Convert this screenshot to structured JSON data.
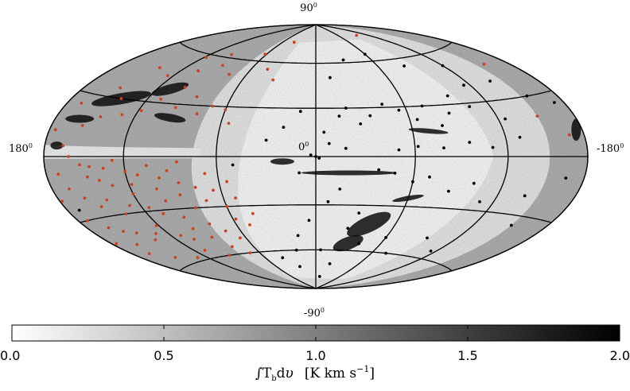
{
  "chart_data": {
    "type": "heatmap",
    "projection": "Aitoff/Hammer all-sky map in galactic coordinates",
    "colormap": "grayscale (white = low, black = high)",
    "grid": true,
    "graticule": {
      "longitude_lines_deg": [
        -180,
        -120,
        -60,
        0,
        60,
        120,
        180
      ],
      "latitude_lines_deg": [
        -60,
        -30,
        0,
        30,
        60
      ]
    },
    "map_labels": {
      "top": {
        "base": "90",
        "sup": "0"
      },
      "bottom": {
        "base": "-90",
        "sup": "0"
      },
      "left": {
        "base": "180",
        "sup": "0"
      },
      "right": {
        "base": "-180",
        "sup": "0"
      },
      "center": {
        "base": "0",
        "sup": "0"
      }
    },
    "colorbar": {
      "range": [
        0.0,
        2.0
      ],
      "ticks": [
        "0.0",
        "0.5",
        "1.0",
        "1.5",
        "2.0"
      ],
      "label": {
        "prefix": "∫T",
        "sub": "b",
        "mid": "d",
        "v": "υ",
        "units": "[K km s",
        "unit_sup": "−1",
        "close": "]"
      }
    },
    "series": [
      {
        "marker": "filled circle",
        "color": "#c8431f",
        "points_lb_deg": [
          [
            150,
            35
          ],
          [
            140,
            30
          ],
          [
            130,
            22
          ],
          [
            118,
            25
          ],
          [
            110,
            32
          ],
          [
            100,
            40
          ],
          [
            95,
            28
          ],
          [
            85,
            35
          ],
          [
            78,
            25
          ],
          [
            70,
            30
          ],
          [
            60,
            28
          ],
          [
            55,
            20
          ],
          [
            125,
            45
          ],
          [
            105,
            50
          ],
          [
            90,
            55
          ],
          [
            75,
            50
          ],
          [
            145,
            20
          ],
          [
            155,
            15
          ],
          [
            165,
            5
          ],
          [
            160,
            0
          ],
          [
            152,
            -4
          ],
          [
            148,
            -10
          ],
          [
            140,
            -12
          ],
          [
            135,
            -6
          ],
          [
            128,
            -2
          ],
          [
            120,
            -8
          ],
          [
            112,
            -10
          ],
          [
            105,
            -5
          ],
          [
            98,
            -12
          ],
          [
            92,
            -8
          ],
          [
            85,
            -3
          ],
          [
            170,
            -8
          ],
          [
            166,
            -15
          ],
          [
            158,
            -20
          ],
          [
            150,
            -25
          ],
          [
            142,
            -22
          ],
          [
            136,
            -30
          ],
          [
            128,
            -26
          ],
          [
            120,
            -20
          ],
          [
            115,
            -28
          ],
          [
            108,
            -32
          ],
          [
            100,
            -25
          ],
          [
            95,
            -35
          ],
          [
            88,
            -22
          ],
          [
            82,
            -30
          ],
          [
            76,
            -18
          ],
          [
            72,
            -26
          ],
          [
            65,
            -20
          ],
          [
            60,
            -30
          ],
          [
            55,
            -15
          ],
          [
            172,
            -30
          ],
          [
            162,
            -35
          ],
          [
            154,
            -38
          ],
          [
            145,
            -40
          ],
          [
            138,
            -45
          ],
          [
            130,
            -42
          ],
          [
            122,
            -38
          ],
          [
            112,
            -45
          ],
          [
            105,
            -48
          ],
          [
            96,
            -42
          ],
          [
            88,
            -48
          ],
          [
            80,
            -40
          ],
          [
            72,
            -45
          ],
          [
            65,
            -50
          ],
          [
            58,
            -38
          ],
          [
            50,
            -42
          ],
          [
            175,
            12
          ],
          [
            168,
            25
          ],
          [
            178,
            -20
          ],
          [
            176,
            -42
          ],
          [
            165,
            -50
          ],
          [
            150,
            -55
          ],
          [
            130,
            -58
          ],
          [
            110,
            -55
          ],
          [
            95,
            -60
          ],
          [
            80,
            -55
          ],
          [
            70,
            -60
          ],
          [
            142,
            48
          ],
          [
            118,
            58
          ],
          [
            98,
            62
          ],
          [
            62,
            65
          ],
          [
            40,
            75
          ],
          [
            -150,
            20
          ],
          [
            -168,
            10
          ],
          [
            -158,
            48
          ],
          [
            -100,
            78
          ],
          [
            45,
            55
          ],
          [
            35,
            48
          ],
          [
            160,
            -45
          ],
          [
            118,
            -15
          ],
          [
            102,
            -18
          ],
          [
            86,
            -15
          ],
          [
            68,
            -10
          ],
          [
            52,
            -25
          ],
          [
            44,
            -35
          ],
          [
            145,
            -5
          ],
          [
            132,
            -15
          ]
        ]
      },
      {
        "marker": "filled circle",
        "color": "#000000",
        "points_lb_deg": [
          [
            0,
            0
          ],
          [
            -2,
            -1
          ],
          [
            3,
            1
          ],
          [
            -5,
            15
          ],
          [
            -15,
            25
          ],
          [
            -20,
            30
          ],
          [
            -28,
            20
          ],
          [
            -35,
            25
          ],
          [
            -45,
            32
          ],
          [
            -55,
            28
          ],
          [
            -65,
            22
          ],
          [
            -72,
            30
          ],
          [
            -80,
            18
          ],
          [
            -88,
            25
          ],
          [
            -95,
            35
          ],
          [
            -105,
            28
          ],
          [
            -115,
            40
          ],
          [
            -125,
            20
          ],
          [
            -38,
            -8
          ],
          [
            -48,
            -10
          ],
          [
            -60,
            -15
          ],
          [
            -70,
            -12
          ],
          [
            -85,
            -20
          ],
          [
            -100,
            -15
          ],
          [
            -110,
            -25
          ],
          [
            -25,
            -45
          ],
          [
            -40,
            -55
          ],
          [
            -60,
            -50
          ],
          [
            -75,
            -60
          ],
          [
            -95,
            -48
          ],
          [
            -115,
            -55
          ],
          [
            -20,
            -70
          ],
          [
            -10,
            -80
          ],
          [
            -30,
            -35
          ],
          [
            -15,
            -20
          ],
          [
            -8,
            -28
          ],
          [
            20,
            -60
          ],
          [
            25,
            -72
          ],
          [
            15,
            -50
          ],
          [
            30,
            10
          ],
          [
            20,
            18
          ],
          [
            10,
            28
          ],
          [
            -12,
            50
          ],
          [
            -30,
            62
          ],
          [
            -60,
            65
          ],
          [
            -85,
            55
          ],
          [
            -120,
            52
          ],
          [
            -140,
            40
          ],
          [
            -155,
            30
          ],
          [
            -130,
            10
          ],
          [
            -140,
            -20
          ],
          [
            -150,
            -35
          ],
          [
            -165,
            -10
          ],
          [
            -172,
            25
          ],
          [
            -110,
            5
          ],
          [
            -95,
            8
          ],
          [
            -78,
            5
          ],
          [
            -62,
            6
          ],
          [
            -50,
            4
          ],
          [
            10,
            -10
          ],
          [
            5,
            -40
          ],
          [
            -5,
            -60
          ],
          [
            40,
            -65
          ],
          [
            50,
            -5
          ],
          [
            170,
            -25
          ],
          [
            -8,
            8
          ],
          [
            -18,
            5
          ]
        ]
      }
    ]
  }
}
